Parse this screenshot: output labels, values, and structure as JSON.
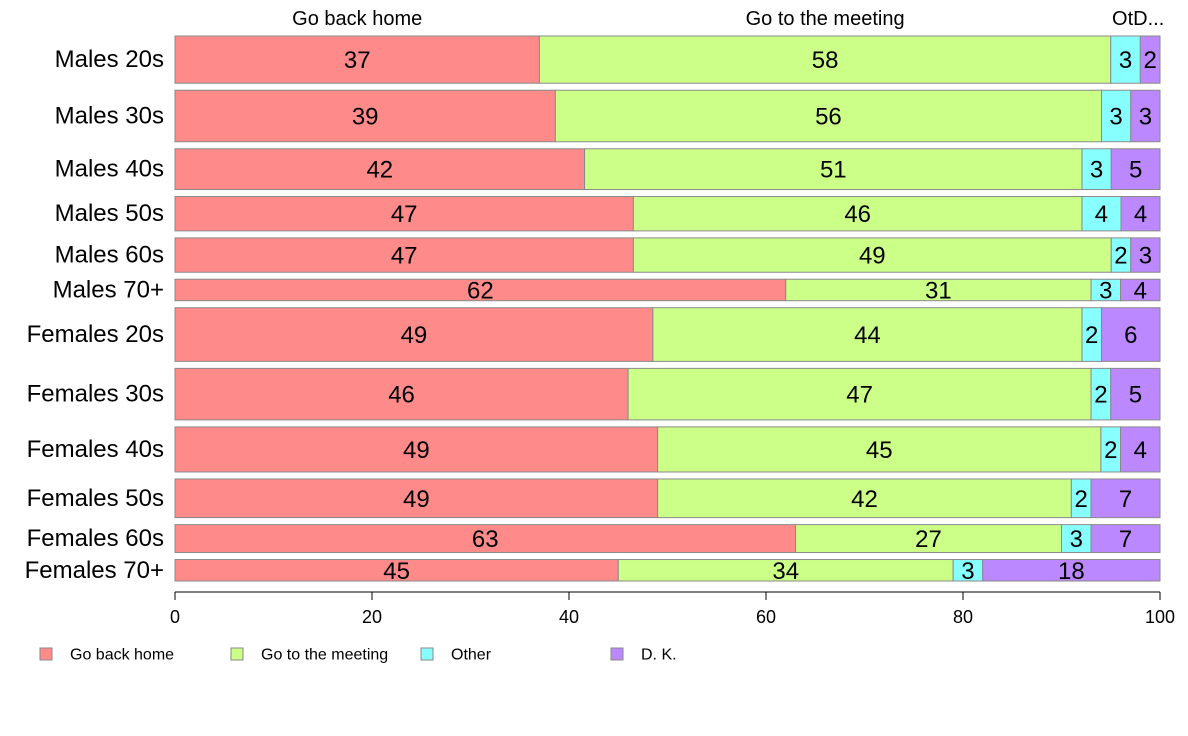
{
  "chart_data": {
    "type": "bar",
    "orientation": "horizontal",
    "stacked": true,
    "column_headers": [
      "Go back home",
      "Go to the meeting",
      "OtD..."
    ],
    "categories": [
      "Males 20s",
      "Males 30s",
      "Males 40s",
      "Males 50s",
      "Males 60s",
      "Males 70+",
      "Females 20s",
      "Females 30s",
      "Females 40s",
      "Females 50s",
      "Females 60s",
      "Females 70+"
    ],
    "series": [
      {
        "name": "Go back home",
        "color": "#FF8A8A",
        "values": [
          37,
          39,
          42,
          47,
          47,
          62,
          49,
          46,
          49,
          49,
          63,
          45
        ]
      },
      {
        "name": "Go to the meeting",
        "color": "#CCFF88",
        "values": [
          58,
          56,
          51,
          46,
          49,
          31,
          44,
          47,
          45,
          42,
          27,
          34
        ]
      },
      {
        "name": "Other",
        "color": "#88FFFF",
        "values": [
          3,
          3,
          3,
          4,
          2,
          3,
          2,
          2,
          2,
          2,
          3,
          3
        ]
      },
      {
        "name": "D. K.",
        "color": "#BB88FF",
        "values": [
          2,
          3,
          5,
          4,
          3,
          4,
          6,
          5,
          4,
          7,
          7,
          18
        ]
      }
    ],
    "category_weights": [
      1.1,
      1.2,
      0.95,
      0.8,
      0.8,
      0.5,
      1.25,
      1.2,
      1.05,
      0.9,
      0.65,
      0.5
    ],
    "xlim": [
      0,
      100
    ],
    "xticks": [
      0,
      20,
      40,
      60,
      80,
      100
    ],
    "legend_position": "bottom",
    "grid": false
  }
}
